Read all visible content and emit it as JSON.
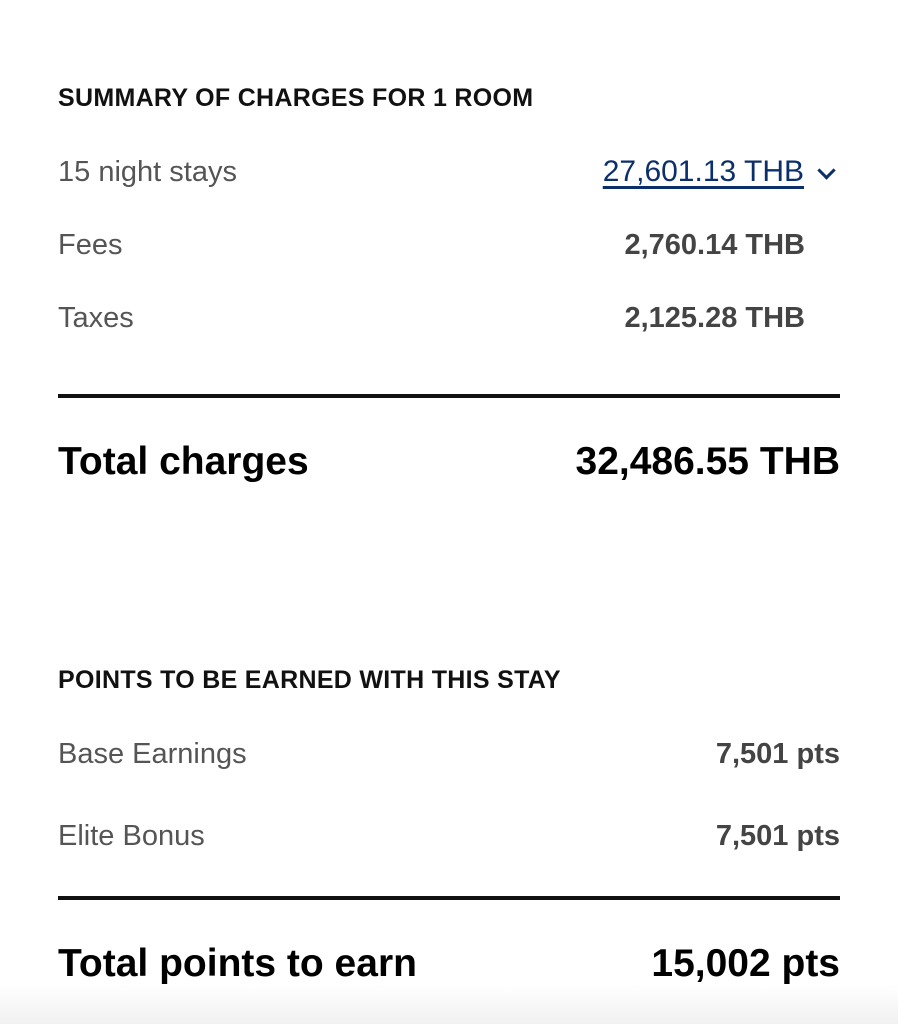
{
  "charges": {
    "title": "SUMMARY OF CHARGES FOR 1 ROOM",
    "rows": [
      {
        "label": "15 night stays",
        "value": "27,601.13 THB"
      },
      {
        "label": "Fees",
        "value": "2,760.14 THB"
      },
      {
        "label": "Taxes",
        "value": "2,125.28 THB"
      }
    ],
    "total_label": "Total charges",
    "total_value": "32,486.55 THB",
    "link_color": "#0b2f6b"
  },
  "points": {
    "title": "POINTS TO BE EARNED WITH THIS STAY",
    "rows": [
      {
        "label": "Base Earnings",
        "value": "7,501 pts"
      },
      {
        "label": "Elite Bonus",
        "value": "7,501 pts"
      }
    ],
    "total_label": "Total points to earn",
    "total_value": "15,002 pts"
  }
}
